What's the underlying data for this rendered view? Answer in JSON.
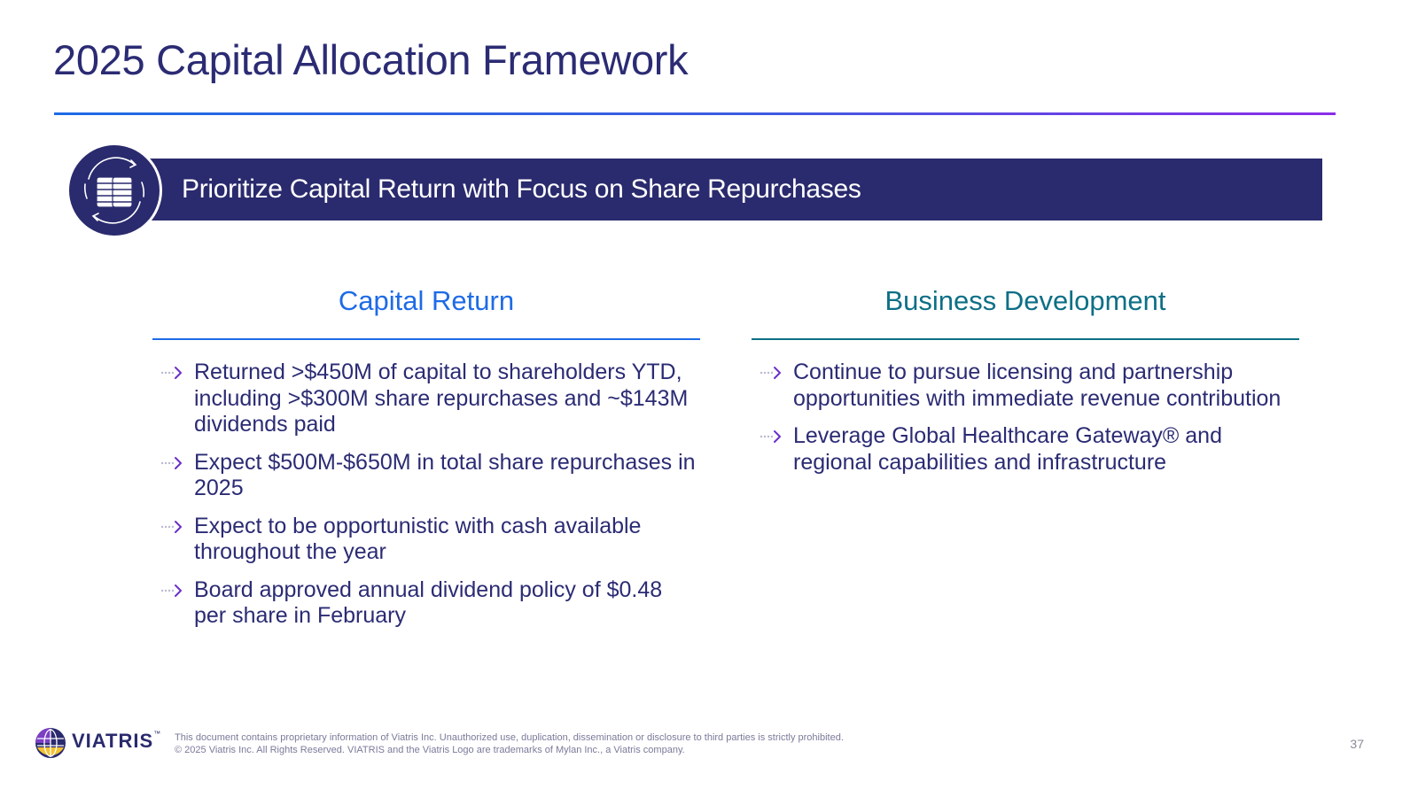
{
  "slide": {
    "title": "2025 Capital Allocation Framework",
    "page_number": "37"
  },
  "banner": {
    "icon": "money-cycle-icon",
    "text": "Prioritize Capital Return with Focus on Share Repurchases"
  },
  "columns": {
    "left": {
      "heading": "Capital Return",
      "bullets": [
        "Returned >$450M of capital to shareholders YTD, including >$300M share repurchases and ~$143M dividends paid",
        "Expect $500M-$650M in total share repurchases in 2025",
        "Expect to be opportunistic with cash available throughout the year",
        "Board approved annual dividend policy of $0.48 per share in February"
      ]
    },
    "right": {
      "heading": "Business Development",
      "bullets": [
        "Continue to pursue licensing and partnership opportunities with immediate revenue contribution",
        "Leverage Global Healthcare Gateway® and regional capabilities and infrastructure"
      ]
    }
  },
  "footer": {
    "logo_text": "VIATRIS",
    "logo_tm": "™",
    "disclaimer_line1": "This document contains proprietary information of Viatris Inc. Unauthorized use, duplication, dissemination or disclosure to third parties is strictly prohibited.",
    "disclaimer_line2": "© 2025 Viatris Inc. All Rights Reserved. VIATRIS and the Viatris Logo are trademarks of Mylan Inc., a Viatris company."
  },
  "colors": {
    "navy": "#2a2a6e",
    "blue_accent": "#1e6be6",
    "teal_accent": "#0d6f86",
    "purple_accent": "#8b2de8"
  }
}
